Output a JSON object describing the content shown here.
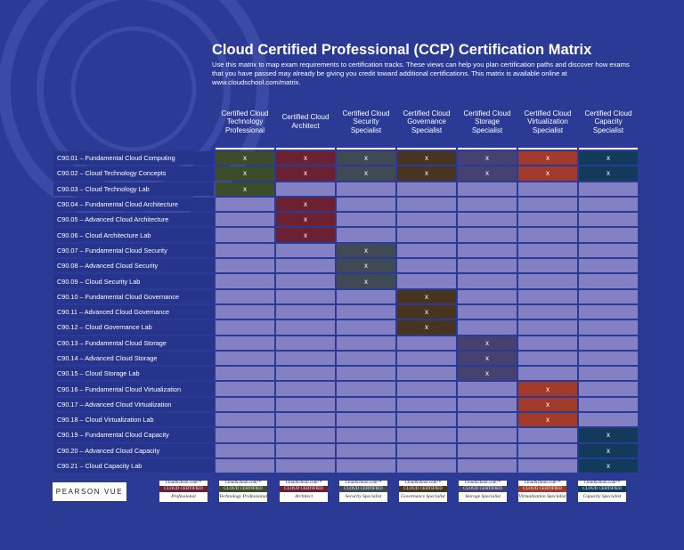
{
  "title": "Cloud Certified Professional (CCP) Certification Matrix",
  "subtitle": "Use this matrix to map exam requirements to certification tracks. These views can help you plan certification paths and discover how exams that you have passed may already be giving you credit toward additional certifications. This matrix is available online at www.cloudschool.com/matrix.",
  "mark": "x",
  "columns": [
    {
      "label": "Certified Cloud Technology Professional",
      "color": "#3d4d2b"
    },
    {
      "label": "Certified Cloud Architect",
      "color": "#6b2131"
    },
    {
      "label": "Certified Cloud Security Specialist",
      "color": "#404a55"
    },
    {
      "label": "Certified Cloud Governance Specialist",
      "color": "#473522"
    },
    {
      "label": "Certified Cloud Storage Specialist",
      "color": "#454272"
    },
    {
      "label": "Certified Cloud Virtualization Specialist",
      "color": "#a23a2c"
    },
    {
      "label": "Certified Cloud Capacity Specialist",
      "color": "#123a5a"
    }
  ],
  "exams": [
    {
      "code": "C90.01",
      "name": "Fundamental Cloud Computing",
      "marks": [
        0,
        1,
        2,
        3,
        4,
        5,
        6
      ]
    },
    {
      "code": "C90.02",
      "name": "Cloud Technology Concepts",
      "marks": [
        0,
        1,
        2,
        3,
        4,
        5,
        6
      ]
    },
    {
      "code": "C90.03",
      "name": "Cloud Technology Lab",
      "marks": [
        0
      ]
    },
    {
      "code": "C90.04",
      "name": "Fundamental Cloud Architecture",
      "marks": [
        1
      ]
    },
    {
      "code": "C90.05",
      "name": "Advanced Cloud Architecture",
      "marks": [
        1
      ]
    },
    {
      "code": "C90.06",
      "name": "Cloud Architecture Lab",
      "marks": [
        1
      ]
    },
    {
      "code": "C90.07",
      "name": "Fundamental Cloud Security",
      "marks": [
        2
      ]
    },
    {
      "code": "C90.08",
      "name": "Advanced Cloud Security",
      "marks": [
        2
      ]
    },
    {
      "code": "C90.09",
      "name": "Cloud Security Lab",
      "marks": [
        2
      ]
    },
    {
      "code": "C90.10",
      "name": "Fundamental Cloud Governance",
      "marks": [
        3
      ]
    },
    {
      "code": "C90.11",
      "name": "Advanced Cloud Governance",
      "marks": [
        3
      ]
    },
    {
      "code": "C90.12",
      "name": "Cloud Governance Lab",
      "marks": [
        3
      ]
    },
    {
      "code": "C90.13",
      "name": "Fundamental Cloud Storage",
      "marks": [
        4
      ]
    },
    {
      "code": "C90.14",
      "name": " Advanced Cloud Storage",
      "marks": [
        4
      ]
    },
    {
      "code": "C90.15",
      "name": "Cloud Storage Lab",
      "marks": [
        4
      ]
    },
    {
      "code": "C90.16",
      "name": "Fundamental Cloud Virtualization",
      "marks": [
        5
      ]
    },
    {
      "code": "C90.17",
      "name": " Advanced Cloud Virtualization",
      "marks": [
        5
      ]
    },
    {
      "code": "C90.18",
      "name": "Cloud Virtualization Lab",
      "marks": [
        5
      ]
    },
    {
      "code": "C90.19",
      "name": "Fundamental Cloud Capacity",
      "marks": [
        6
      ]
    },
    {
      "code": "C90.20",
      "name": "Advanced Cloud Capacity",
      "marks": [
        6
      ]
    },
    {
      "code": "C90.21",
      "name": "Cloud Capacity Lab",
      "marks": [
        6
      ]
    }
  ],
  "footer": {
    "pearson_logo": "PEARSON VUE",
    "badges": [
      {
        "top": "CloudSchool.com™",
        "mid": "CLOUD CERTIFIED",
        "bottom": "Professional",
        "color": "#6b2131"
      },
      {
        "top": "CloudSchool.com™",
        "mid": "CLOUD CERTIFIED",
        "bottom": "Technology Professional",
        "color": "#3d4d2b"
      },
      {
        "top": "CloudSchool.com™",
        "mid": "CLOUD CERTIFIED",
        "bottom": "Architect",
        "color": "#6b2131"
      },
      {
        "top": "CloudSchool.com™",
        "mid": "CLOUD CERTIFIED",
        "bottom": "Security Specialist",
        "color": "#404a55"
      },
      {
        "top": "CloudSchool.com™",
        "mid": "CLOUD CERTIFIED",
        "bottom": "Governance Specialist",
        "color": "#473522"
      },
      {
        "top": "CloudSchool.com™",
        "mid": "CLOUD CERTIFIED",
        "bottom": "Storage Specialist",
        "color": "#454272"
      },
      {
        "top": "CloudSchool.com™",
        "mid": "CLOUD CERTIFIED",
        "bottom": "Virtualization Specialist",
        "color": "#a23a2c"
      },
      {
        "top": "CloudSchool.com™",
        "mid": "CLOUD CERTIFIED",
        "bottom": "Capacity Specialist",
        "color": "#123a5a"
      }
    ]
  }
}
